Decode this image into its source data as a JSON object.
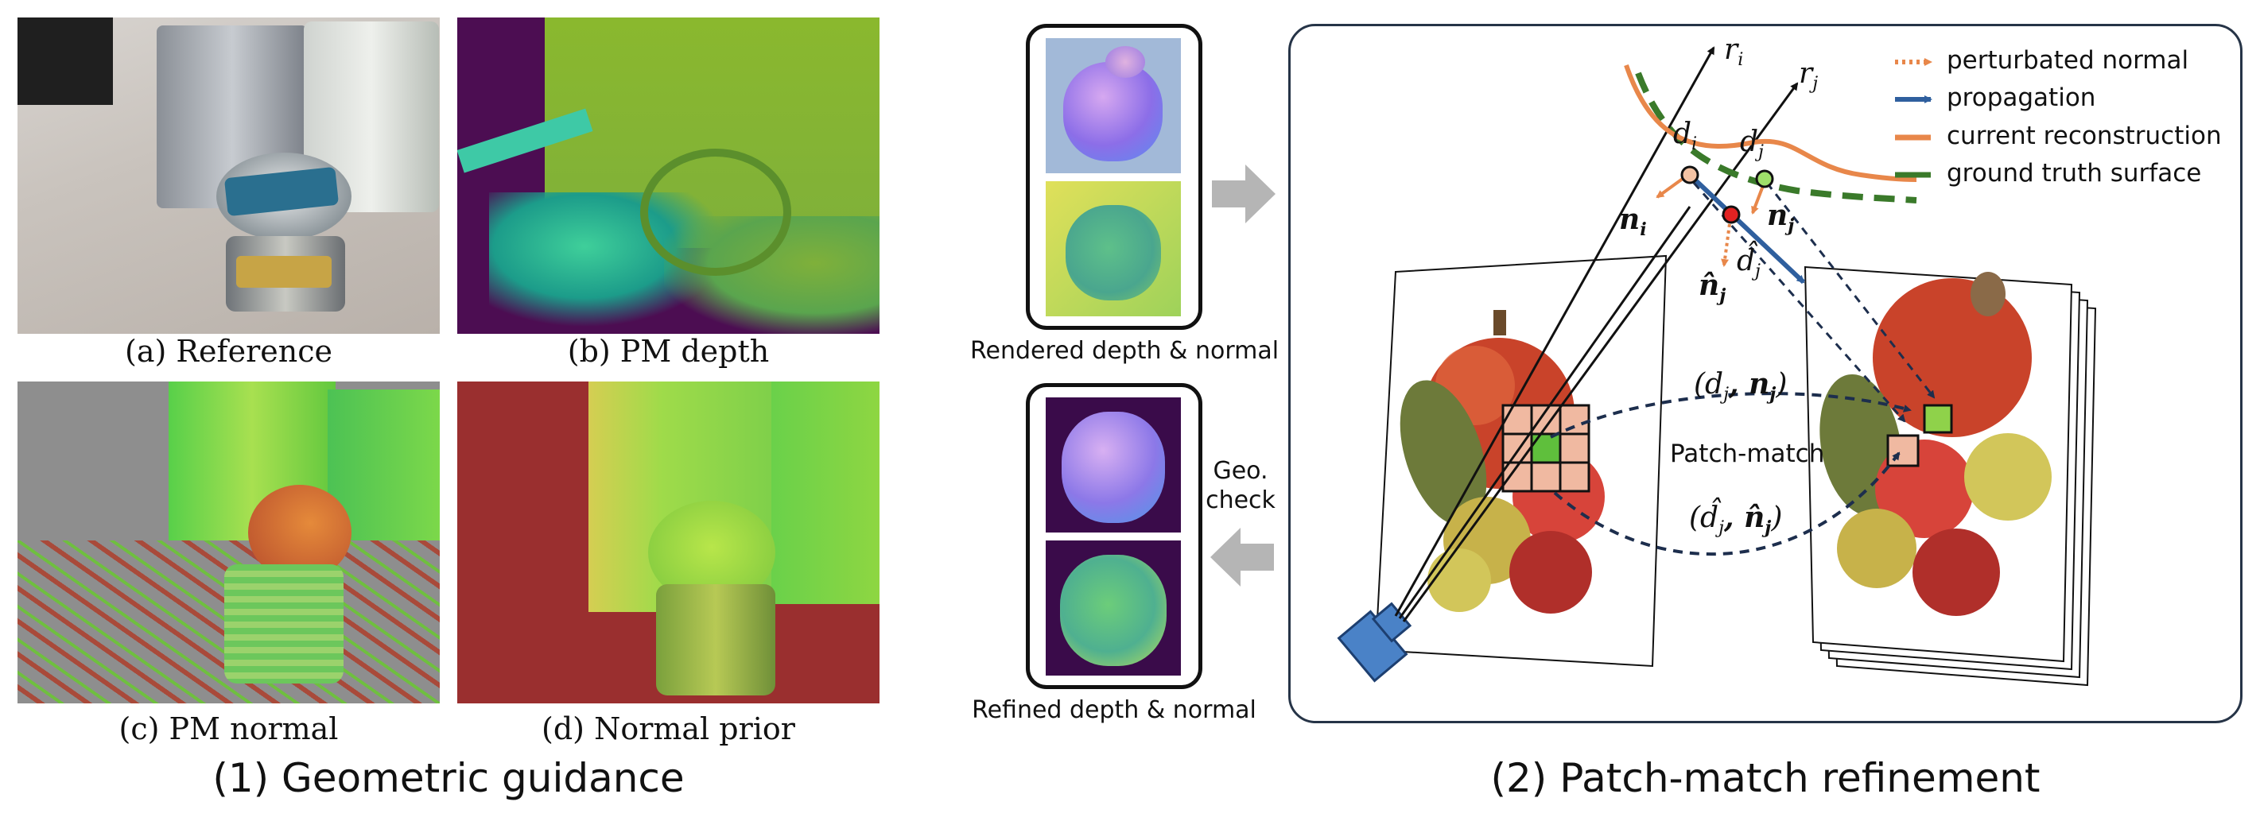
{
  "left_panel": {
    "captions": {
      "a": "(a) Reference",
      "b": "(b) PM depth",
      "c": "(c) PM normal",
      "d": "(d) Normal prior"
    },
    "section_title": "(1) Geometric guidance"
  },
  "middle": {
    "rendered_caption": "Rendered depth & normal",
    "refined_caption": "Refined depth & normal",
    "geo_check": [
      "Geo.",
      "check"
    ]
  },
  "right_panel": {
    "section_title": "(2) Patch-match refinement",
    "legend": [
      {
        "label": "perturbated normal",
        "color": "#e8874a",
        "style": "dotted"
      },
      {
        "label": "propagation",
        "color": "#2f5f9e",
        "style": "solid"
      },
      {
        "label": "current reconstruction",
        "color": "#e8874a",
        "style": "solid"
      },
      {
        "label": "ground truth surface",
        "color": "#3a7a2a",
        "style": "solid"
      }
    ],
    "labels": {
      "ri": "r",
      "ri_sub": "i",
      "rj": "r",
      "rj_sub": "j",
      "di": "d",
      "di_sub": "i",
      "dj": "d",
      "dj_sub": "j",
      "ni": "n",
      "ni_sub": "i",
      "nj": "n",
      "nj_sub": "j",
      "nhat": "n̂",
      "nhat_sub": "j",
      "dhat": "d̂",
      "dhat_sub": "j",
      "patch_match": "Patch-match",
      "pair_top": "(d",
      "pair_top_sub": "j",
      "pair_top_mid": ", n",
      "pair_top_sub2": "j",
      "pair_top_end": ")",
      "pair_bot": "(d̂",
      "pair_bot_sub": "j",
      "pair_bot_mid": ", n̂",
      "pair_bot_sub2": "j",
      "pair_bot_end": ")"
    }
  }
}
